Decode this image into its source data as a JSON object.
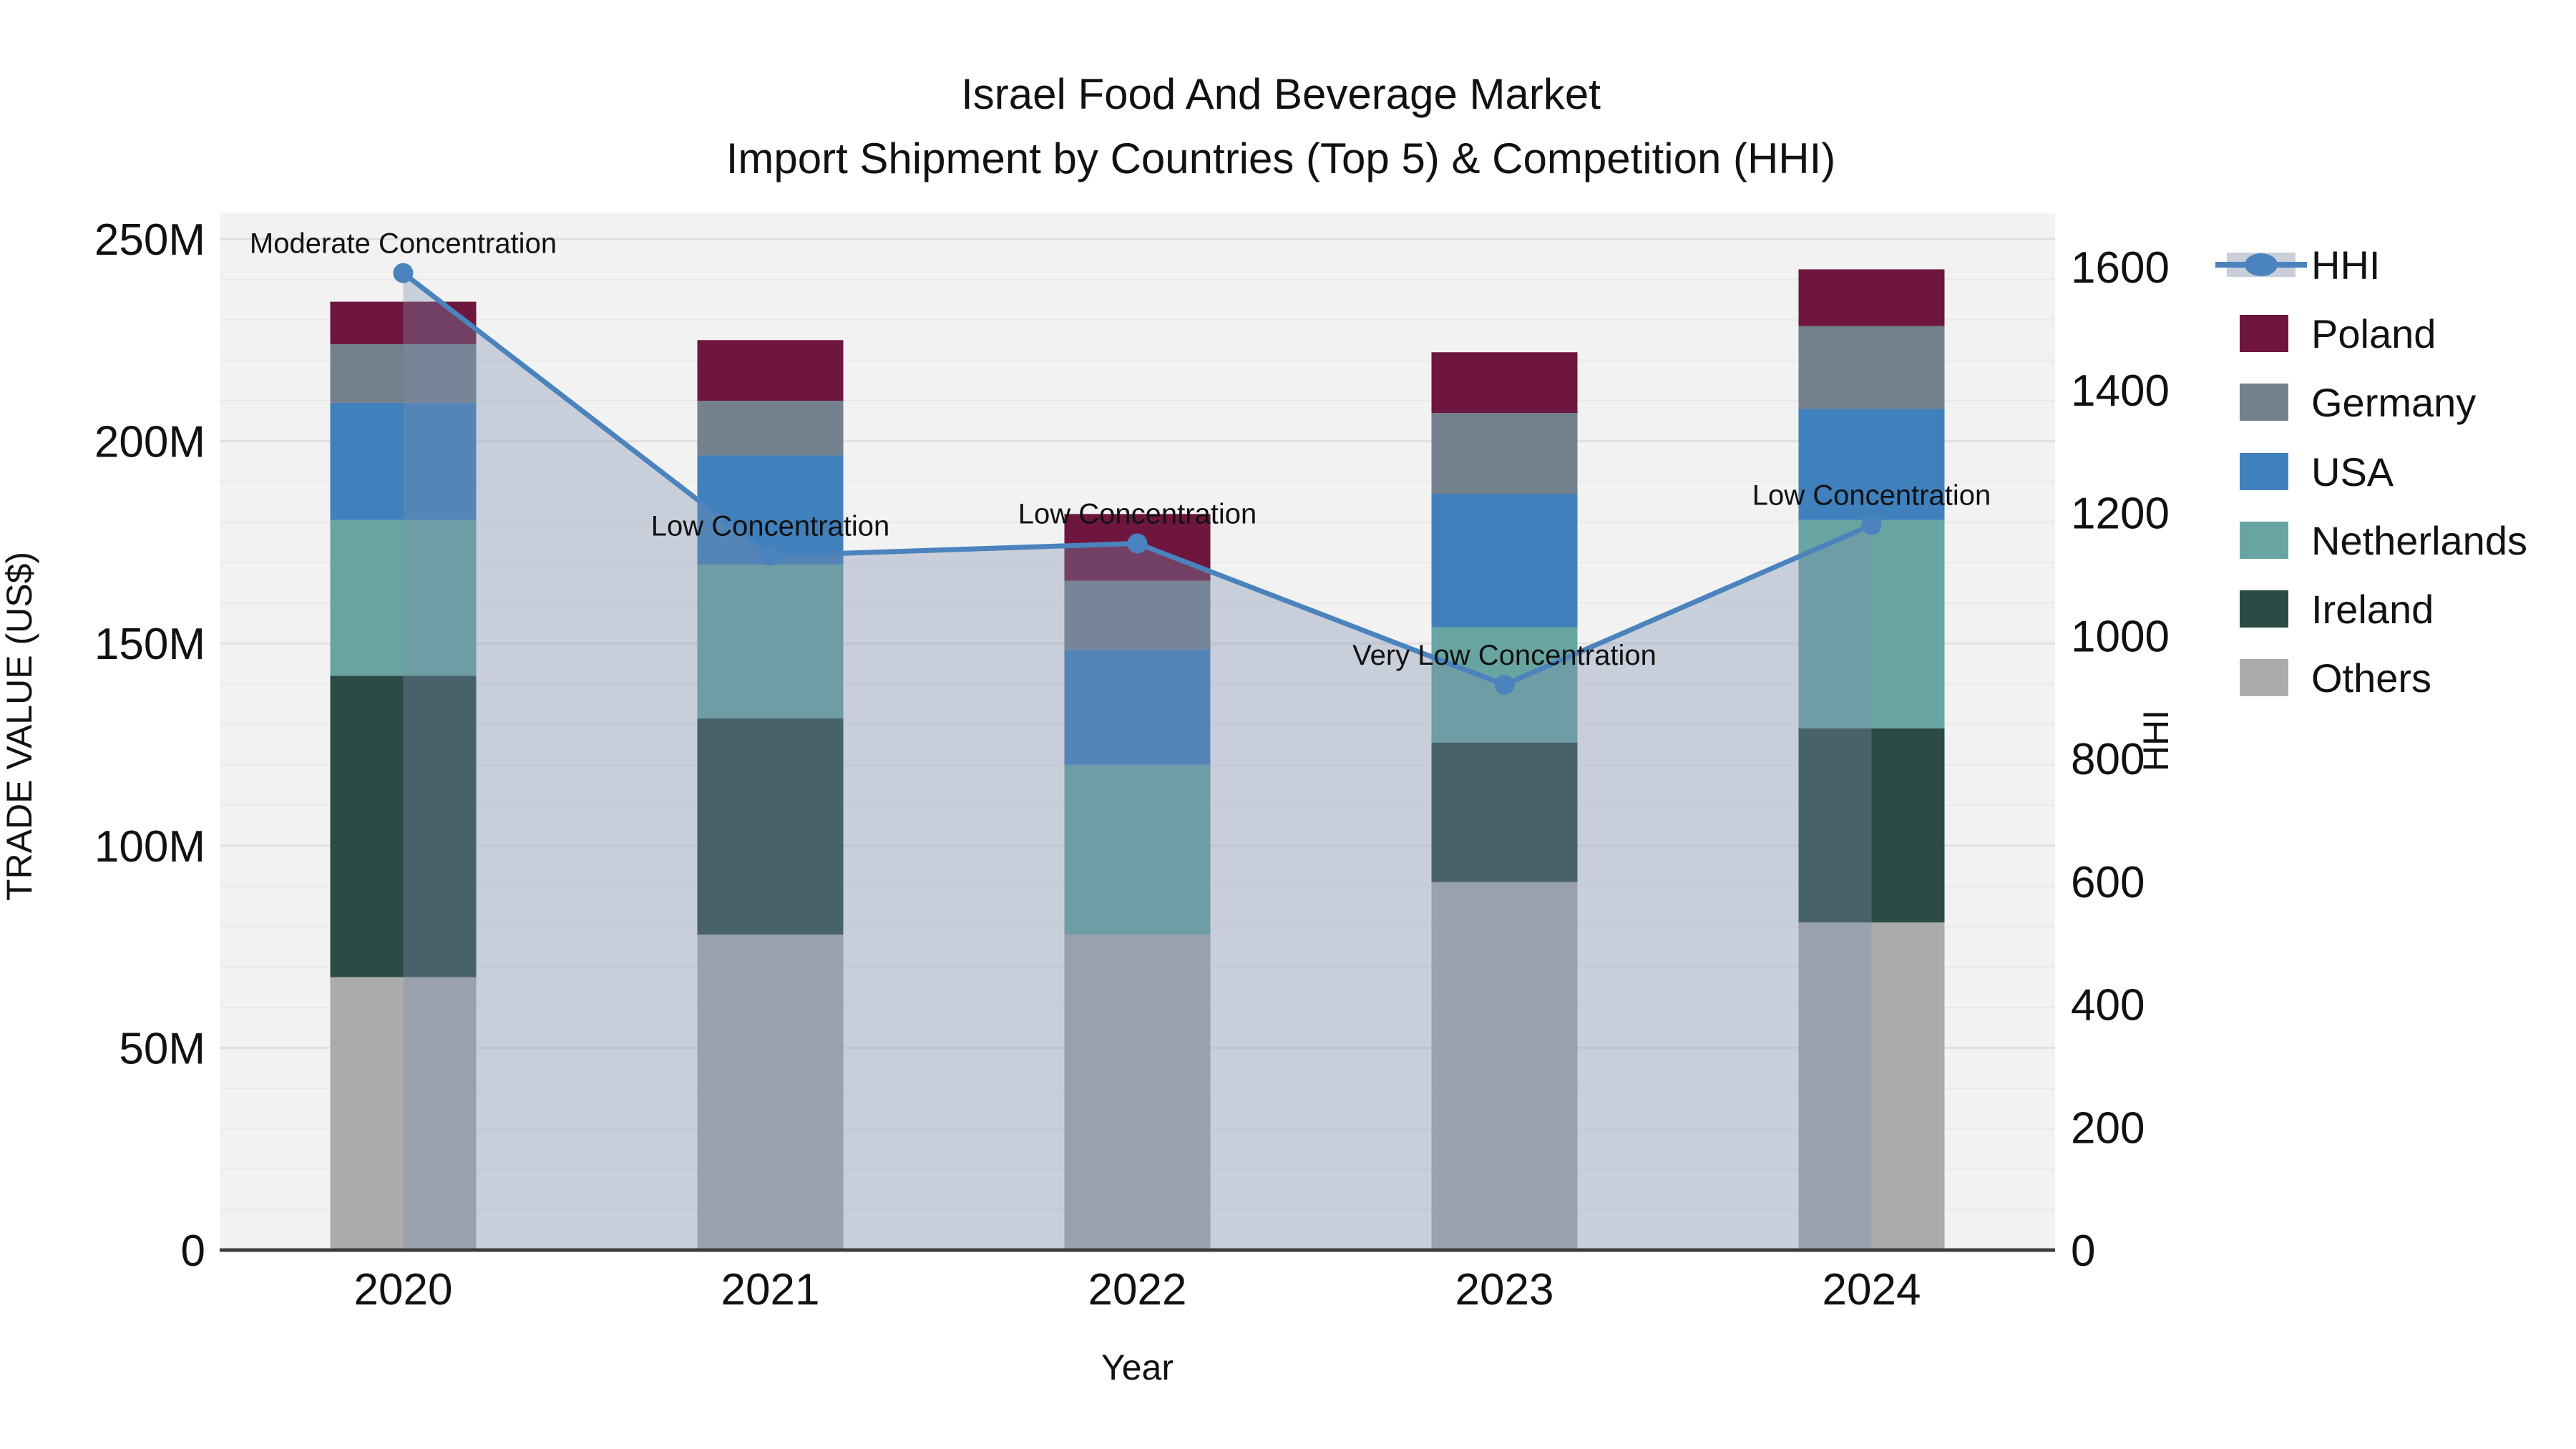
{
  "title": {
    "line1": "Israel Food And Beverage Market",
    "line2": "Import Shipment by Countries (Top 5) & Competition (HHI)"
  },
  "axes": {
    "x": {
      "title": "Year",
      "tick_labels": [
        "2020",
        "2021",
        "2022",
        "2023",
        "2024"
      ]
    },
    "y_left": {
      "title": "TRADE VALUE (US$)",
      "tick_labels": [
        "0",
        "50M",
        "100M",
        "150M",
        "200M",
        "250M"
      ],
      "tick_values": [
        0,
        50,
        100,
        150,
        200,
        250
      ],
      "max": 250
    },
    "y_right": {
      "title": "HHI",
      "tick_labels": [
        "0",
        "200",
        "400",
        "600",
        "800",
        "1000",
        "1200",
        "1400",
        "1600"
      ],
      "tick_values": [
        0,
        200,
        400,
        600,
        800,
        1000,
        1200,
        1400,
        1600
      ],
      "max": 1600
    }
  },
  "legend": {
    "items": [
      {
        "label": "HHI",
        "swatch": "line-marker",
        "color": "#4A83BD",
        "band_color": "#C9CFDA"
      },
      {
        "label": "Poland",
        "swatch": "square",
        "color": "#6E163E"
      },
      {
        "label": "Germany",
        "swatch": "square",
        "color": "#73808D"
      },
      {
        "label": "USA",
        "swatch": "square",
        "color": "#4080BC"
      },
      {
        "label": "Netherlands",
        "swatch": "square",
        "color": "#68A5A2"
      },
      {
        "label": "Ireland",
        "swatch": "square",
        "color": "#2C4B47"
      },
      {
        "label": "Others",
        "swatch": "square",
        "color": "#ABABAB"
      }
    ]
  },
  "annotations": [
    {
      "year": "2020",
      "text": "Moderate Concentration"
    },
    {
      "year": "2021",
      "text": "Low Concentration"
    },
    {
      "year": "2022",
      "text": "Low Concentration"
    },
    {
      "year": "2023",
      "text": "Very Low Concentration"
    },
    {
      "year": "2024",
      "text": "Low Concentration"
    }
  ],
  "chart_data": {
    "type": "bar+line",
    "title": "Israel Food And Beverage Market — Import Shipment by Countries (Top 5) & Competition (HHI)",
    "categories": [
      "2020",
      "2021",
      "2022",
      "2023",
      "2024"
    ],
    "bar_unit": "M US$ (trade value)",
    "stack_order_bottom_to_top": [
      "Others",
      "Ireland",
      "Netherlands",
      "USA",
      "Germany",
      "Poland"
    ],
    "series": [
      {
        "name": "Poland",
        "type": "bar",
        "color": "#6E163E",
        "values": [
          10.5,
          15,
          16.5,
          15,
          14
        ]
      },
      {
        "name": "Germany",
        "type": "bar",
        "color": "#73808D",
        "values": [
          14.5,
          13.5,
          17,
          20,
          20.5
        ]
      },
      {
        "name": "USA",
        "type": "bar",
        "color": "#4080BC",
        "values": [
          29,
          27,
          28.5,
          33,
          27.5
        ]
      },
      {
        "name": "Netherlands",
        "type": "bar",
        "color": "#68A5A2",
        "values": [
          38.5,
          38,
          42,
          28.5,
          51.5
        ]
      },
      {
        "name": "Ireland",
        "type": "bar",
        "color": "#2C4B47",
        "values": [
          74.5,
          53.5,
          0,
          34.5,
          48
        ]
      },
      {
        "name": "Others",
        "type": "bar",
        "color": "#ABABAB",
        "values": [
          67.5,
          78,
          78,
          91,
          81
        ]
      },
      {
        "name": "HHI",
        "type": "line",
        "y_axis": "right",
        "color": "#4A83BD",
        "marker": "circle",
        "area_fill": "#7E8FAE",
        "area_opacity": 0.35,
        "values": [
          1590,
          1130,
          1150,
          920,
          1180
        ]
      }
    ],
    "bar_totals": [
      234.5,
      225,
      182,
      222,
      242.5
    ],
    "xlabel": "Year",
    "ylabel_left": "TRADE VALUE (US$)",
    "ylabel_right": "HHI",
    "ylim_left": [
      0,
      250
    ],
    "ylim_right": [
      0,
      1600
    ],
    "grid": {
      "minor_step": 10,
      "major_step": 50,
      "grid_on": true
    },
    "legend_position": "right"
  },
  "colors": {
    "plot_bg": "#F2F2F2",
    "page_bg": "#FFFFFF",
    "axis_line": "#3C3C3C",
    "text": "#111111"
  }
}
